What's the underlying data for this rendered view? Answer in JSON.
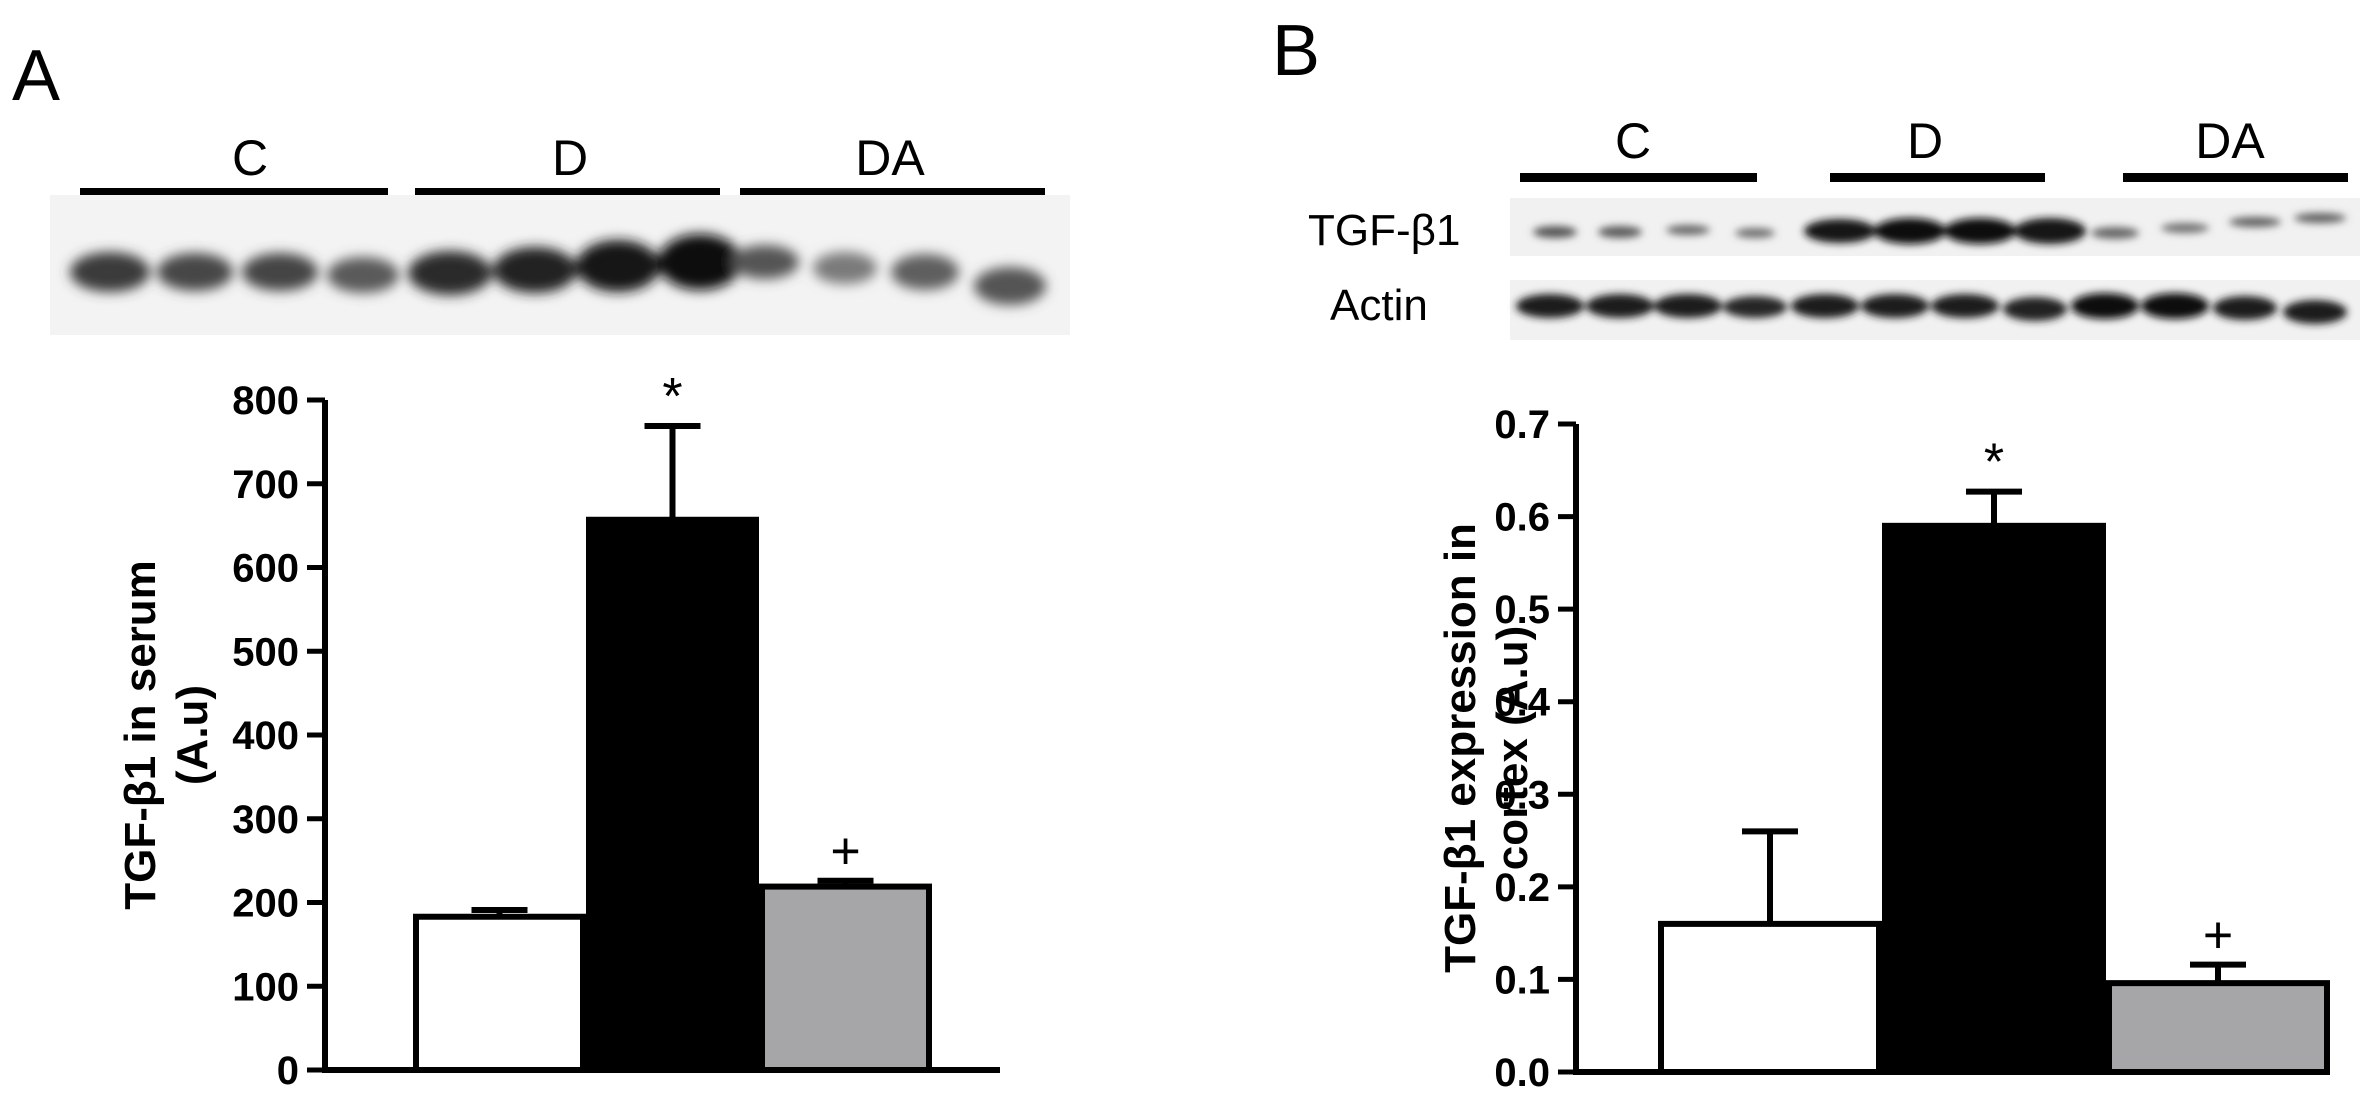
{
  "panels": [
    {
      "letter": "A",
      "groups": [
        "C",
        "D",
        "DA"
      ],
      "blot_rows": [],
      "chart_data": {
        "type": "bar",
        "categories": [
          "C",
          "D",
          "DA"
        ],
        "values": [
          183,
          657,
          219
        ],
        "errors": [
          8,
          112,
          7
        ],
        "colors": [
          "#ffffff",
          "#000000",
          "#a6a6a8"
        ],
        "annotations": [
          "",
          "*",
          "+"
        ],
        "xlabel": "",
        "ylabel_lines": [
          "TGF-β1 in serum",
          "(A.u)"
        ],
        "ylim": [
          0,
          800
        ],
        "yticks": [
          "0",
          "100",
          "200",
          "300",
          "400",
          "500",
          "600",
          "700",
          "800"
        ],
        "grid": false
      }
    },
    {
      "letter": "B",
      "groups": [
        "C",
        "D",
        "DA"
      ],
      "blot_rows": [
        "TGF-β1",
        "Actin"
      ],
      "chart_data": {
        "type": "bar",
        "categories": [
          "C",
          "D",
          "DA"
        ],
        "values": [
          0.16,
          0.59,
          0.096
        ],
        "errors": [
          0.1,
          0.037,
          0.02
        ],
        "colors": [
          "#ffffff",
          "#000000",
          "#a6a6a8"
        ],
        "annotations": [
          "",
          "*",
          "+"
        ],
        "xlabel": "",
        "ylabel_lines": [
          "TGF-β1 expression in",
          "cortex (A.u)"
        ],
        "ylim": [
          0,
          0.7
        ],
        "yticks": [
          "0.0",
          "0.1",
          "0.2",
          "0.3",
          "0.4",
          "0.5",
          "0.6",
          "0.7"
        ],
        "grid": false
      }
    }
  ]
}
